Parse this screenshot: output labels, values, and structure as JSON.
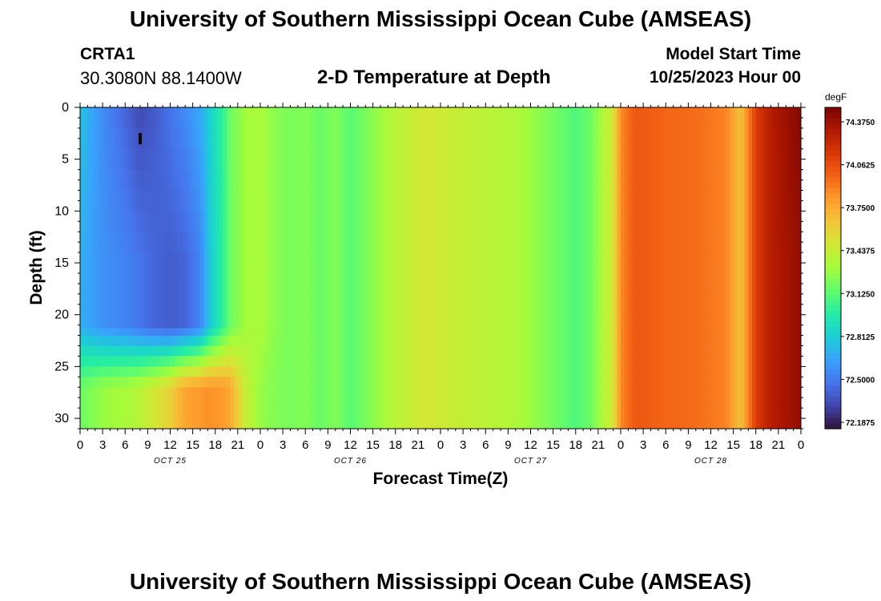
{
  "header": {
    "title": "University of Southern Mississippi Ocean Cube (AMSEAS)",
    "station_id": "CRTA1",
    "station_coords": "30.3080N  88.1400W",
    "plot_title": "2-D Temperature at Depth",
    "model_start_label": "Model Start Time",
    "model_start_value": "10/25/2023 Hour 00"
  },
  "footer": {
    "title": "University of Southern Mississippi Ocean Cube (AMSEAS)"
  },
  "chart_data": {
    "type": "heatmap",
    "title": "2-D Temperature at Depth",
    "xlabel": "Forecast Time(Z)",
    "ylabel": "Depth (ft)",
    "colorbar_units": "degF",
    "x_tick_labels": [
      "0",
      "3",
      "6",
      "9",
      "12",
      "15",
      "18",
      "21",
      "0",
      "3",
      "6",
      "9",
      "12",
      "15",
      "18",
      "21",
      "0",
      "3",
      "6",
      "9",
      "12",
      "15",
      "18",
      "21",
      "0",
      "3",
      "6",
      "9",
      "12",
      "15",
      "18",
      "21",
      "0"
    ],
    "date_labels": [
      {
        "label": "OCT 25",
        "hour": 12
      },
      {
        "label": "OCT 26",
        "hour": 36
      },
      {
        "label": "OCT 27",
        "hour": 60
      },
      {
        "label": "OCT 28",
        "hour": 84
      }
    ],
    "x_range_hours": [
      0,
      96
    ],
    "y_ticks": [
      0,
      5,
      10,
      15,
      20,
      25,
      30
    ],
    "y_range_ft": [
      0,
      31
    ],
    "colorbar_ticks": [
      "72.1875",
      "72.5000",
      "72.8125",
      "73.1250",
      "73.4375",
      "73.7500",
      "74.0625",
      "74.3750"
    ],
    "colorbar_range": [
      72.1875,
      74.375
    ],
    "colormap": [
      "#30123b",
      "#4145ab",
      "#4675ed",
      "#39a2fc",
      "#1bcfd4",
      "#24eca6",
      "#61fc6c",
      "#a4fc3b",
      "#d1e834",
      "#f3c63a",
      "#fe9b2d",
      "#f36315",
      "#d93806",
      "#b11901",
      "#7a0402"
    ],
    "marker": {
      "hour": 8,
      "depth_ft": 3
    },
    "depth_ft": [
      1,
      3,
      5,
      7,
      9,
      11,
      13,
      15,
      17,
      19,
      21,
      21.6,
      22.5,
      23.5,
      24.5,
      25.5,
      26.5,
      27.5,
      28.5,
      29.5,
      30.5
    ],
    "hours": [
      0,
      3,
      6,
      8,
      10,
      12,
      14,
      16,
      17,
      19,
      20,
      22,
      24,
      26,
      28,
      30,
      32,
      34,
      35,
      36,
      38,
      42,
      46,
      50,
      54,
      58,
      62,
      66,
      68,
      71,
      72,
      74,
      78,
      82,
      86,
      88,
      90,
      92,
      96
    ],
    "surface_profile": [
      72.78,
      72.58,
      72.45,
      72.36,
      72.42,
      72.5,
      72.58,
      72.68,
      72.8,
      73.0,
      73.15,
      73.28,
      73.3,
      73.22,
      73.18,
      73.2,
      73.14,
      73.2,
      73.15,
      73.1,
      73.18,
      73.35,
      73.45,
      73.4,
      73.36,
      73.32,
      73.2,
      73.08,
      73.15,
      73.45,
      73.8,
      73.95,
      73.9,
      73.88,
      73.82,
      73.6,
      74.05,
      74.2,
      74.35
    ],
    "mid_profile": [
      72.7,
      72.6,
      72.55,
      72.5,
      72.45,
      72.42,
      72.45,
      72.55,
      72.75,
      73.0,
      73.15,
      73.28,
      73.3,
      73.22,
      73.18,
      73.2,
      73.14,
      73.2,
      73.15,
      73.1,
      73.18,
      73.35,
      73.45,
      73.4,
      73.36,
      73.32,
      73.2,
      73.08,
      73.15,
      73.45,
      73.8,
      73.95,
      73.9,
      73.88,
      73.82,
      73.6,
      74.05,
      74.2,
      74.3
    ],
    "bottom_profile": [
      73.15,
      73.25,
      73.3,
      73.35,
      73.45,
      73.55,
      73.72,
      73.75,
      73.78,
      73.75,
      73.7,
      73.4,
      73.25,
      73.2,
      73.18,
      73.2,
      73.14,
      73.2,
      73.15,
      73.1,
      73.18,
      73.35,
      73.45,
      73.4,
      73.36,
      73.32,
      73.2,
      73.08,
      73.15,
      73.45,
      73.8,
      73.95,
      73.9,
      73.88,
      73.82,
      73.6,
      74.05,
      74.2,
      74.3
    ]
  }
}
